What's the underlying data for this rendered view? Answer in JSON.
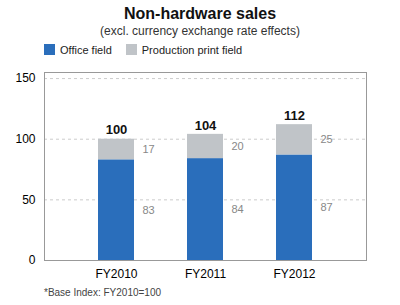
{
  "chart_data": {
    "type": "bar",
    "stacked": true,
    "title": "Non-hardware sales",
    "subtitle": "(excl. currency exchange rate effects)",
    "footnote": "*Base Index: FY2010=100",
    "categories": [
      "FY2010",
      "FY2011",
      "FY2012"
    ],
    "series": [
      {
        "name": "Office field",
        "color": "#2a6ebb",
        "values": [
          83,
          84,
          87
        ]
      },
      {
        "name": "Production print field",
        "color": "#c0c4c8",
        "values": [
          17,
          20,
          25
        ]
      }
    ],
    "totals": [
      100,
      104,
      112
    ],
    "ylim": [
      0,
      155
    ],
    "yticks": [
      0,
      50,
      100,
      150
    ],
    "grid": true,
    "legend": "upper left",
    "data_labels": true
  }
}
